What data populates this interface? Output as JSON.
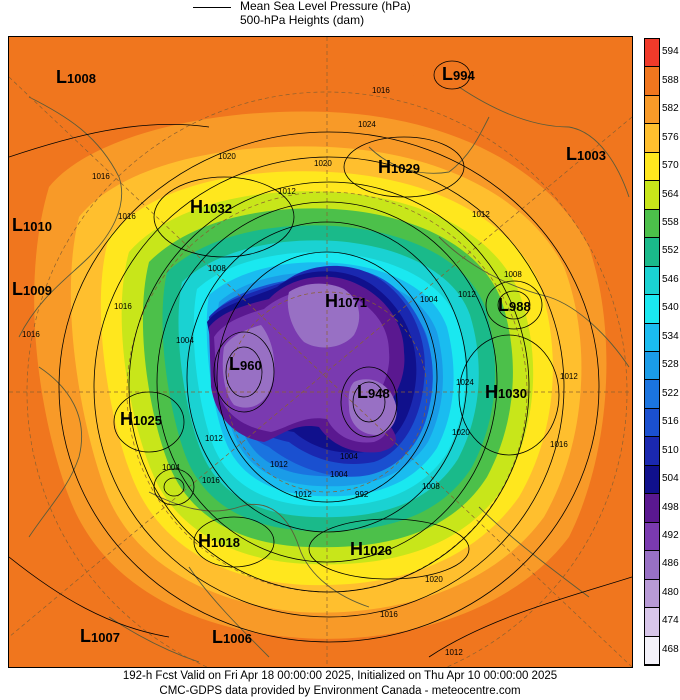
{
  "legend": {
    "line_label": "Mean Sea Level Pressure (hPa)",
    "fill_label": "500-hPa Heights (dam)"
  },
  "colorbar": {
    "levels": [
      "594",
      "588",
      "582",
      "576",
      "570",
      "564",
      "558",
      "552",
      "546",
      "540",
      "534",
      "528",
      "522",
      "516",
      "510",
      "504",
      "498",
      "492",
      "486",
      "480",
      "474",
      "468"
    ],
    "colors": [
      "#f03a2a",
      "#f0761e",
      "#f89a28",
      "#ffbf2e",
      "#ffe71e",
      "#c8e61a",
      "#4cc04a",
      "#1aba8a",
      "#1ad2d2",
      "#1ae8f0",
      "#1abcf0",
      "#1a9ce8",
      "#1a74e0",
      "#1a50d0",
      "#1a28b0",
      "#10108c",
      "#5a1890",
      "#7a3ab0",
      "#9870c4",
      "#b89ad6",
      "#d8c6ea",
      "#f4f2fa"
    ]
  },
  "systems": [
    {
      "type": "L",
      "value": "1008"
    },
    {
      "type": "L",
      "value": "994"
    },
    {
      "type": "L",
      "value": "1003"
    },
    {
      "type": "H",
      "value": "1029"
    },
    {
      "type": "H",
      "value": "1032"
    },
    {
      "type": "L",
      "value": "1010"
    },
    {
      "type": "L",
      "value": "1009"
    },
    {
      "type": "H",
      "value": "1071"
    },
    {
      "type": "L",
      "value": "988"
    },
    {
      "type": "L",
      "value": "960"
    },
    {
      "type": "L",
      "value": "948"
    },
    {
      "type": "H",
      "value": "1030"
    },
    {
      "type": "H",
      "value": "1025"
    },
    {
      "type": "H",
      "value": "1018"
    },
    {
      "type": "H",
      "value": "1026"
    },
    {
      "type": "L",
      "value": "1007"
    },
    {
      "type": "L",
      "value": "1006"
    }
  ],
  "isobar_labels": [
    "1016",
    "1024",
    "1016",
    "1012",
    "1020",
    "1012",
    "1016",
    "1020",
    "1012",
    "1008",
    "1008",
    "1004",
    "1004",
    "1016",
    "1012",
    "1024",
    "1020",
    "1016",
    "1004",
    "1012",
    "1012",
    "1004",
    "992",
    "1008",
    "1016",
    "1020",
    "1016",
    "1012",
    "1004",
    "1016",
    "1012"
  ],
  "footer": {
    "line1": "192-h Fcst Valid on Fri Apr 18 00:00:00 2025, Initialized on Thu Apr 10 00:00:00 2025",
    "line2": "CMC-GDPS data provided by Environment Canada - meteocentre.com"
  }
}
